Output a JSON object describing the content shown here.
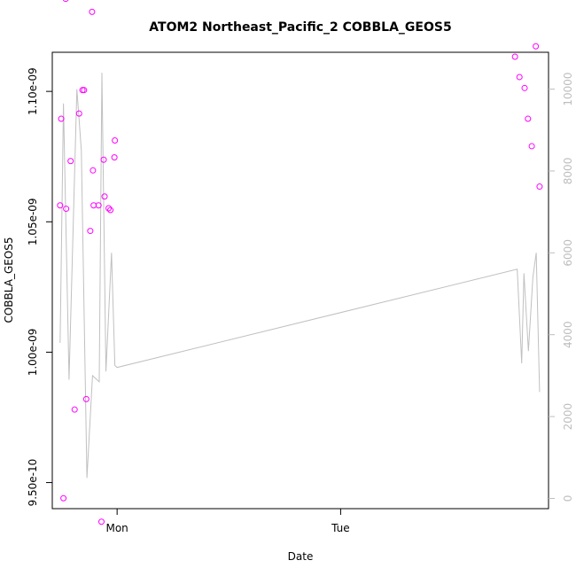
{
  "chart_data": {
    "type": "scatter",
    "title": "ATOM2 Northeast_Pacific_2 COBBLA_GEOS5",
    "xlabel": "Date",
    "ylabel": "COBBLA_GEOS5",
    "x_ticks": [
      "Mon",
      "Tue"
    ],
    "y_ticks": [
      "9.50e-10",
      "1.00e-09",
      "1.05e-09",
      "1.10e-09"
    ],
    "y_tick_values": [
      9.5e-10,
      1e-09,
      1.05e-09,
      1.1e-09
    ],
    "ylim": [
      9.4e-10,
      1.115e-09
    ],
    "y2_ticks": [
      "0",
      "2000",
      "4000",
      "6000",
      "8000",
      "10000"
    ],
    "y2_tick_values": [
      0,
      2000,
      4000,
      6000,
      8000,
      10000
    ],
    "y2lim": [
      -250,
      10900
    ],
    "xlim": [
      -0.29,
      1.93
    ],
    "x_tick_positions": [
      0,
      1
    ],
    "series": [
      {
        "marker": "circle",
        "color": "#ff00ff",
        "points": [
          [
            -0.255,
            1.0563e-09
          ],
          [
            -0.25,
            1.0895e-09
          ],
          [
            -0.24,
            9.44e-10
          ],
          [
            -0.23,
            1.1355e-09
          ],
          [
            -0.228,
            1.055e-09
          ],
          [
            -0.208,
            1.0733e-09
          ],
          [
            -0.19,
            9.78e-10
          ],
          [
            -0.17,
            1.0915e-09
          ],
          [
            -0.155,
            1.1005e-09
          ],
          [
            -0.148,
            1.1005e-09
          ],
          [
            -0.138,
            9.82e-10
          ],
          [
            -0.12,
            1.0465e-09
          ],
          [
            -0.113,
            1.1405e-09
          ],
          [
            -0.112,
            1.1305e-09
          ],
          [
            -0.108,
            1.0697e-09
          ],
          [
            -0.105,
            1.0563e-09
          ],
          [
            -0.083,
            1.0563e-09
          ],
          [
            -0.078,
            1.1415e-09
          ],
          [
            -0.07,
            9.35e-10
          ],
          [
            -0.06,
            1.0738e-09
          ],
          [
            -0.056,
            1.0597e-09
          ],
          [
            -0.038,
            1.0552e-09
          ],
          [
            -0.03,
            1.0545e-09
          ],
          [
            -0.012,
            1.0747e-09
          ],
          [
            -0.01,
            1.0812e-09
          ],
          [
            1.78,
            1.1133e-09
          ],
          [
            1.8,
            1.1055e-09
          ],
          [
            1.823,
            1.1013e-09
          ],
          [
            1.838,
            1.0895e-09
          ],
          [
            1.855,
            1.079e-09
          ],
          [
            1.873,
            1.1173e-09
          ],
          [
            1.89,
            1.0635e-09
          ]
        ]
      },
      {
        "type": "line",
        "color": "#c0c0c0",
        "axis": "right",
        "points": [
          [
            -0.255,
            3800
          ],
          [
            -0.24,
            9650
          ],
          [
            -0.215,
            2900
          ],
          [
            -0.18,
            10000
          ],
          [
            -0.16,
            8500
          ],
          [
            -0.135,
            500
          ],
          [
            -0.11,
            3000
          ],
          [
            -0.08,
            2850
          ],
          [
            -0.068,
            10400
          ],
          [
            -0.05,
            3100
          ],
          [
            -0.025,
            6000
          ],
          [
            -0.01,
            3250
          ],
          [
            0,
            3200
          ],
          [
            1.79,
            5600
          ],
          [
            1.81,
            3300
          ],
          [
            1.82,
            5500
          ],
          [
            1.84,
            3600
          ],
          [
            1.86,
            5400
          ],
          [
            1.875,
            6000
          ],
          [
            1.89,
            2600
          ]
        ]
      }
    ],
    "legend": "none",
    "grid": false
  }
}
